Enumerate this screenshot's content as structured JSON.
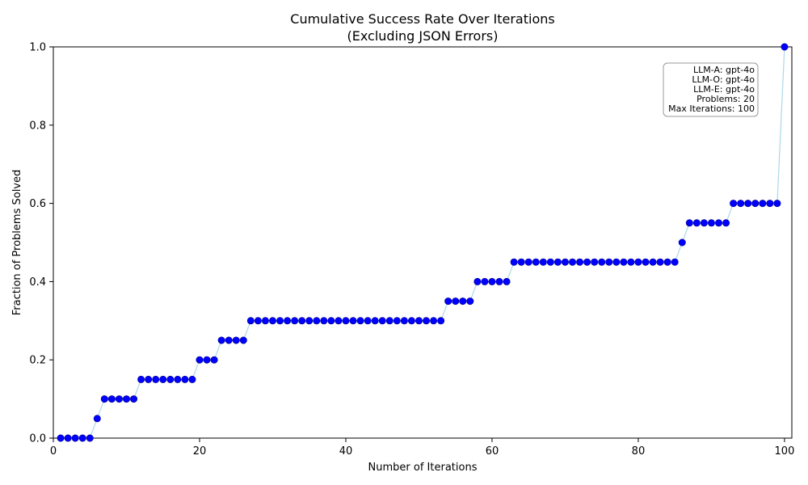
{
  "chart_data": {
    "type": "scatter",
    "title_line1": "Cumulative Success Rate Over Iterations",
    "title_line2": "(Excluding JSON Errors)",
    "xlabel": "Number of Iterations",
    "ylabel": "Fraction of Problems Solved",
    "xlim": [
      0,
      101
    ],
    "ylim": [
      0,
      1
    ],
    "xticks": [
      0,
      20,
      40,
      60,
      80,
      100
    ],
    "yticks": [
      0.0,
      0.2,
      0.4,
      0.6,
      0.8,
      1.0
    ],
    "xtick_labels": [
      "0",
      "20",
      "40",
      "60",
      "80",
      "100"
    ],
    "ytick_labels": [
      "0.0",
      "0.2",
      "0.4",
      "0.6",
      "0.8",
      "1.0"
    ],
    "grid": false,
    "marker_color": "#0000ff",
    "line_color": "#add8e6",
    "x": [
      1,
      2,
      3,
      4,
      5,
      6,
      7,
      8,
      9,
      10,
      11,
      12,
      13,
      14,
      15,
      16,
      17,
      18,
      19,
      20,
      21,
      22,
      23,
      24,
      25,
      26,
      27,
      28,
      29,
      30,
      31,
      32,
      33,
      34,
      35,
      36,
      37,
      38,
      39,
      40,
      41,
      42,
      43,
      44,
      45,
      46,
      47,
      48,
      49,
      50,
      51,
      52,
      53,
      54,
      55,
      56,
      57,
      58,
      59,
      60,
      61,
      62,
      63,
      64,
      65,
      66,
      67,
      68,
      69,
      70,
      71,
      72,
      73,
      74,
      75,
      76,
      77,
      78,
      79,
      80,
      81,
      82,
      83,
      84,
      85,
      86,
      87,
      88,
      89,
      90,
      91,
      92,
      93,
      94,
      95,
      96,
      97,
      98,
      99,
      100
    ],
    "y": [
      0,
      0,
      0,
      0,
      0,
      0.05,
      0.1,
      0.1,
      0.1,
      0.1,
      0.1,
      0.15,
      0.15,
      0.15,
      0.15,
      0.15,
      0.15,
      0.15,
      0.15,
      0.2,
      0.2,
      0.2,
      0.25,
      0.25,
      0.25,
      0.25,
      0.3,
      0.3,
      0.3,
      0.3,
      0.3,
      0.3,
      0.3,
      0.3,
      0.3,
      0.3,
      0.3,
      0.3,
      0.3,
      0.3,
      0.3,
      0.3,
      0.3,
      0.3,
      0.3,
      0.3,
      0.3,
      0.3,
      0.3,
      0.3,
      0.3,
      0.3,
      0.3,
      0.35,
      0.35,
      0.35,
      0.35,
      0.4,
      0.4,
      0.4,
      0.4,
      0.4,
      0.45,
      0.45,
      0.45,
      0.45,
      0.45,
      0.45,
      0.45,
      0.45,
      0.45,
      0.45,
      0.45,
      0.45,
      0.45,
      0.45,
      0.45,
      0.45,
      0.45,
      0.45,
      0.45,
      0.45,
      0.45,
      0.45,
      0.45,
      0.5,
      0.55,
      0.55,
      0.55,
      0.55,
      0.55,
      0.55,
      0.6,
      0.6,
      0.6,
      0.6,
      0.6,
      0.6,
      0.6,
      1.0
    ],
    "info_box": [
      "LLM-A: gpt-4o",
      "LLM-O: gpt-4o",
      "LLM-E: gpt-4o",
      "Problems: 20",
      "Max Iterations: 100"
    ],
    "info_box_placement": "top-right"
  }
}
